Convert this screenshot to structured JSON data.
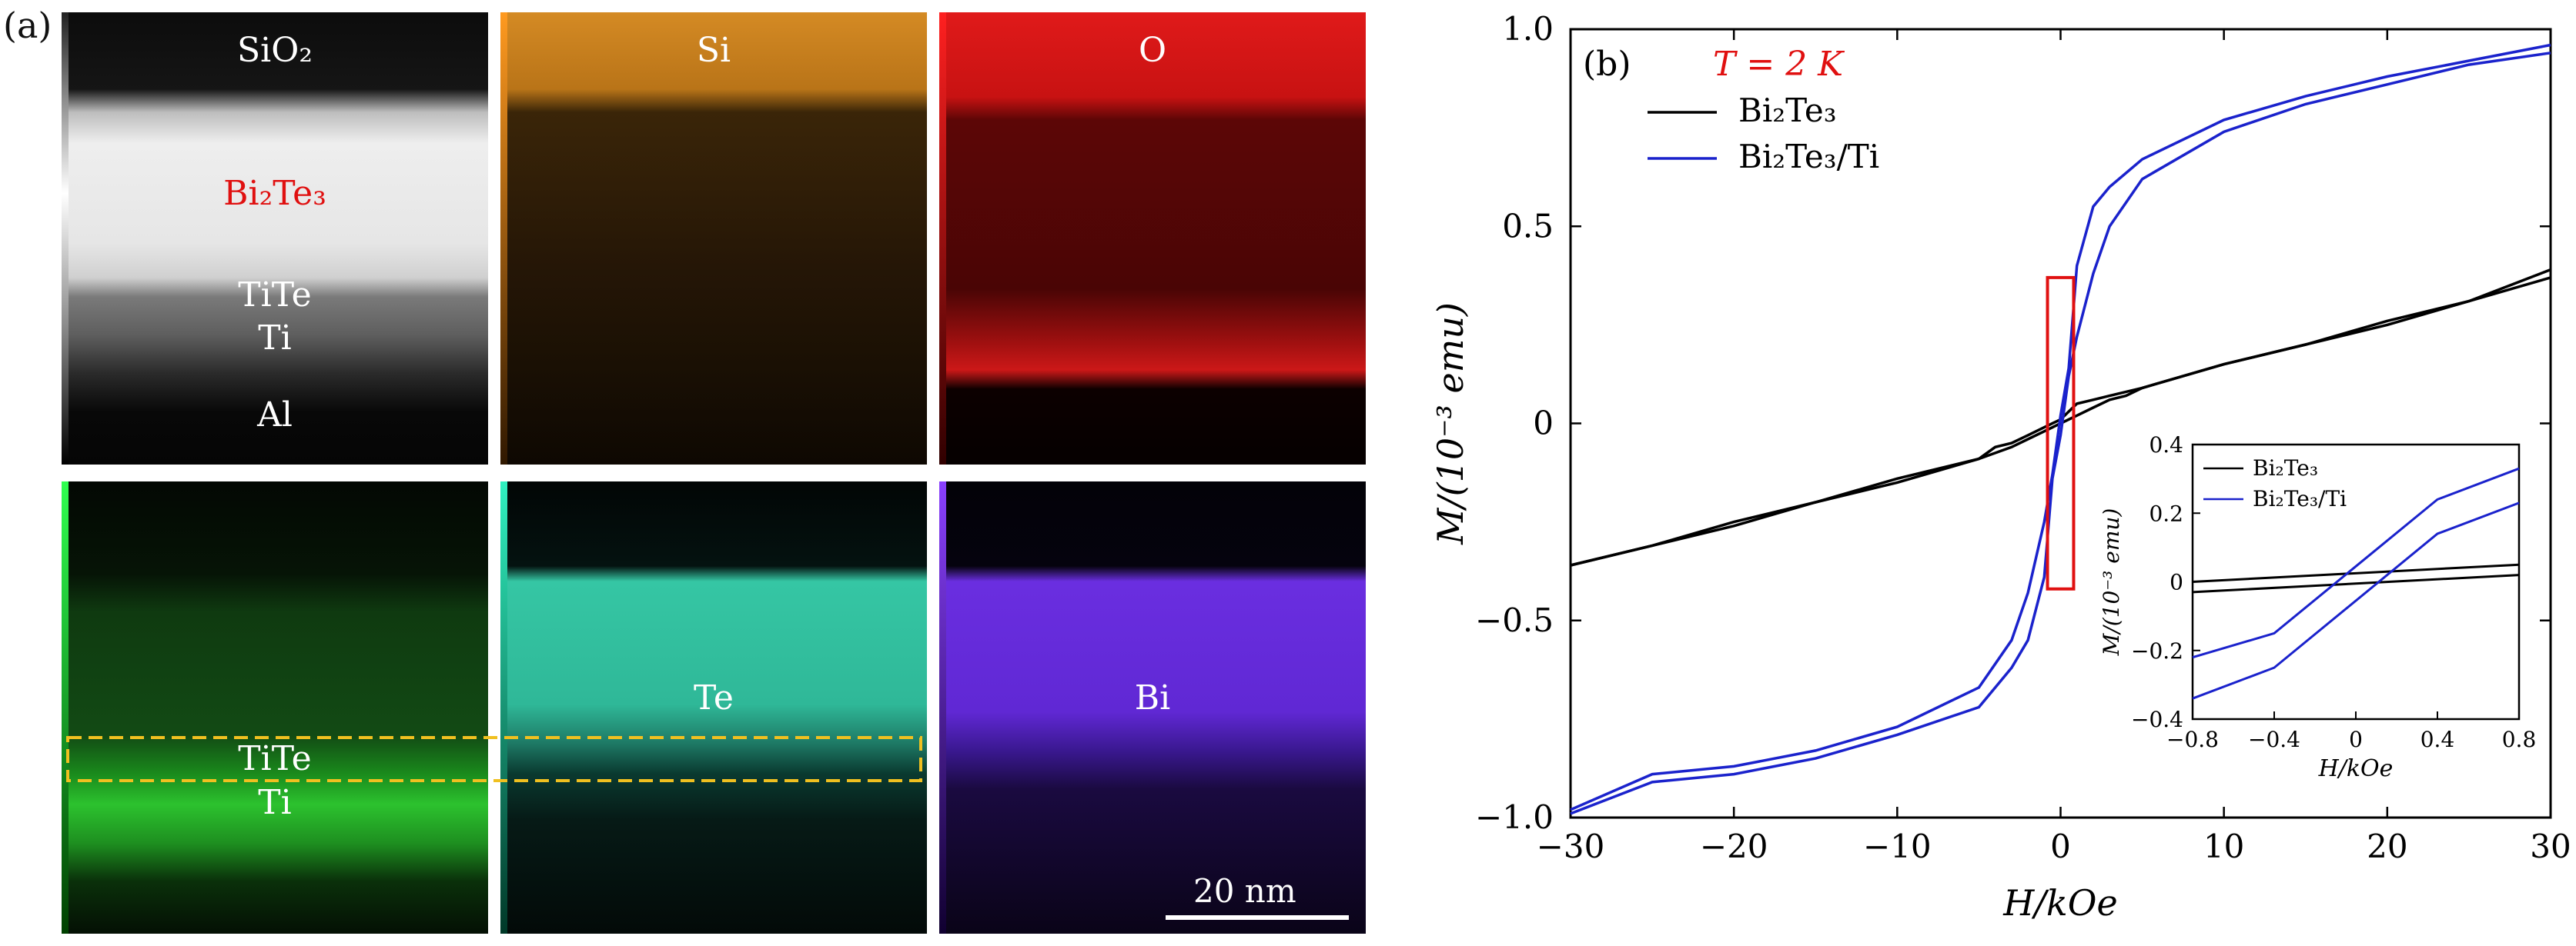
{
  "panel_a": {
    "letter": "(a)",
    "maps": [
      {
        "labels": [
          "SiO₂",
          "Bi₂Te₃",
          "TiTe",
          "Ti",
          "Al"
        ]
      },
      {
        "labels": [
          "Si"
        ]
      },
      {
        "labels": [
          "O"
        ]
      },
      {
        "labels": [
          "TiTe",
          "Ti"
        ]
      },
      {
        "labels": [
          "Te"
        ]
      },
      {
        "labels": [
          "Bi"
        ]
      }
    ],
    "scale_bar": "20 nm",
    "colors": {
      "Si": "#e08a1e",
      "O": "#e01818",
      "Ti": "#22dd44",
      "Te": "#2ee8c0",
      "Bi": "#8a3cff",
      "label_red": "#e01010",
      "box": "#f0c020"
    }
  },
  "panel_b": {
    "letter": "(b)",
    "temperature": "T = 2 K",
    "xlabel": "H/kOe",
    "ylabel": "M/(10⁻³ emu)",
    "legend": [
      "Bi₂Te₃",
      "Bi₂Te₃/Ti"
    ],
    "inset": {
      "xlabel": "H/kOe",
      "ylabel": "M/(10⁻³ emu)",
      "legend": [
        "Bi₂Te₃",
        "Bi₂Te₃/Ti"
      ]
    }
  },
  "chart_data": {
    "type": "line",
    "xlim": [
      -30,
      30
    ],
    "ylim": [
      -1.0,
      1.0
    ],
    "xticks": [
      -30,
      -20,
      -10,
      0,
      10,
      20,
      30
    ],
    "yticks": [
      -1.0,
      -0.5,
      0,
      0.5,
      1.0
    ],
    "xtick_labels": [
      "−30",
      "−20",
      "−10",
      "0",
      "10",
      "20",
      "30"
    ],
    "ytick_labels": [
      "−1.0",
      "−0.5",
      "0",
      "0.5",
      "1.0"
    ],
    "series": [
      {
        "name": "Bi₂Te₃",
        "color": "#000000",
        "upper": {
          "x": [
            -30,
            -25,
            -20,
            -15,
            -10,
            -5,
            -4,
            -3,
            -2,
            -1,
            0,
            1,
            2,
            3,
            5,
            10,
            15,
            20,
            25,
            30
          ],
          "y": [
            -0.36,
            -0.31,
            -0.26,
            -0.2,
            -0.15,
            -0.09,
            -0.06,
            -0.05,
            -0.03,
            -0.01,
            0.01,
            0.05,
            0.06,
            0.07,
            0.09,
            0.15,
            0.2,
            0.25,
            0.31,
            0.39
          ]
        },
        "lower": {
          "x": [
            30,
            25,
            20,
            15,
            10,
            5,
            4,
            3,
            2,
            1,
            0,
            -1,
            -2,
            -3,
            -5,
            -10,
            -15,
            -20,
            -25,
            -30
          ],
          "y": [
            0.37,
            0.31,
            0.26,
            0.2,
            0.15,
            0.09,
            0.07,
            0.06,
            0.04,
            0.02,
            0.0,
            -0.02,
            -0.04,
            -0.06,
            -0.09,
            -0.14,
            -0.2,
            -0.25,
            -0.31,
            -0.36
          ]
        }
      },
      {
        "name": "Bi₂Te₃/Ti",
        "color": "#1a22cc",
        "upper": {
          "x": [
            -30,
            -25,
            -20,
            -15,
            -10,
            -5,
            -3,
            -2,
            -1,
            -0.5,
            0,
            0.5,
            1,
            2,
            3,
            5,
            10,
            15,
            20,
            25,
            30
          ],
          "y": [
            -0.98,
            -0.89,
            -0.87,
            -0.83,
            -0.77,
            -0.67,
            -0.55,
            -0.43,
            -0.25,
            -0.13,
            0.02,
            0.14,
            0.4,
            0.55,
            0.6,
            0.67,
            0.77,
            0.83,
            0.88,
            0.92,
            0.96
          ]
        },
        "lower": {
          "x": [
            30,
            25,
            20,
            15,
            10,
            5,
            3,
            2,
            1,
            0.5,
            0,
            -0.5,
            -1,
            -2,
            -3,
            -5,
            -10,
            -15,
            -20,
            -25,
            -30
          ],
          "y": [
            0.94,
            0.91,
            0.86,
            0.81,
            0.74,
            0.62,
            0.5,
            0.38,
            0.22,
            0.12,
            -0.03,
            -0.14,
            -0.39,
            -0.55,
            -0.62,
            -0.72,
            -0.79,
            -0.85,
            -0.89,
            -0.91,
            -0.99
          ]
        }
      }
    ],
    "inset": {
      "xlim": [
        -0.8,
        0.8
      ],
      "ylim": [
        -0.4,
        0.4
      ],
      "xticks": [
        -0.8,
        -0.4,
        0,
        0.4,
        0.8
      ],
      "yticks": [
        -0.4,
        -0.2,
        0,
        0.2,
        0.4
      ],
      "xtick_labels": [
        "−0.8",
        "−0.4",
        "0",
        "0.4",
        "0.8"
      ],
      "ytick_labels": [
        "−0.4",
        "−0.2",
        "0",
        "0.2",
        "0.4"
      ],
      "series": [
        {
          "name": "Bi₂Te₃",
          "color": "#000000",
          "lines": [
            {
              "x": [
                -0.8,
                0.8
              ],
              "y": [
                0.0,
                0.05
              ]
            },
            {
              "x": [
                -0.8,
                0.8
              ],
              "y": [
                -0.03,
                0.02
              ]
            }
          ]
        },
        {
          "name": "Bi₂Te₃/Ti",
          "color": "#1a22cc",
          "lines": [
            {
              "x": [
                -0.8,
                -0.4,
                0.4,
                0.8
              ],
              "y": [
                -0.22,
                -0.15,
                0.24,
                0.33
              ]
            },
            {
              "x": [
                -0.8,
                -0.4,
                0.4,
                0.8
              ],
              "y": [
                -0.34,
                -0.25,
                0.14,
                0.23
              ]
            }
          ]
        }
      ]
    }
  }
}
